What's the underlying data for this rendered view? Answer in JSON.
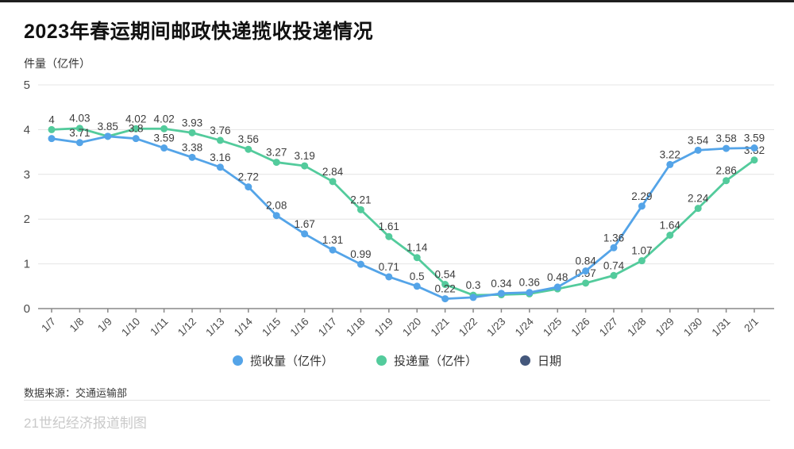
{
  "page": {
    "title": "2023年春运期间邮政快递揽收投递情况",
    "y_axis_title": "件量（亿件）",
    "source": "数据来源：交通运输部",
    "credit": "21世纪经济报道制图"
  },
  "colors": {
    "pickup": "#54a4e8",
    "delivery": "#53cb9c",
    "date_legend": "#44587c",
    "grid": "#e4e4e4",
    "axis": "#888888",
    "data_label": "#3d3d3d",
    "tick_label": "#4a4a4a"
  },
  "legend": [
    {
      "label": "揽收量（亿件）",
      "color_key": "pickup"
    },
    {
      "label": "投递量（亿件）",
      "color_key": "delivery"
    },
    {
      "label": "日期",
      "color_key": "date_legend"
    }
  ],
  "chart_data": {
    "type": "line",
    "title": "2023年春运期间邮政快递揽收投递情况",
    "ylabel": "件量（亿件）",
    "ylim": [
      0,
      5
    ],
    "yticks": [
      0,
      1,
      2,
      3,
      4,
      5
    ],
    "grid": true,
    "legend_position": "bottom",
    "categories": [
      "1/7",
      "1/8",
      "1/9",
      "1/10",
      "1/11",
      "1/12",
      "1/13",
      "1/14",
      "1/15",
      "1/16",
      "1/17",
      "1/18",
      "1/19",
      "1/20",
      "1/21",
      "1/22",
      "1/23",
      "1/24",
      "1/25",
      "1/26",
      "1/27",
      "1/28",
      "1/29",
      "1/30",
      "1/31",
      "2/1"
    ],
    "series": [
      {
        "name": "揽收量（亿件）",
        "color": "#54a4e8",
        "values": [
          3.8,
          3.71,
          3.85,
          3.8,
          3.59,
          3.38,
          3.16,
          2.72,
          2.08,
          1.67,
          1.31,
          0.99,
          0.71,
          0.5,
          0.22,
          0.25,
          0.34,
          0.36,
          0.48,
          0.84,
          1.36,
          2.29,
          3.22,
          3.54,
          3.58,
          3.59
        ],
        "labels": [
          "",
          "3.71",
          "3.85",
          "3.8",
          "3.59",
          "3.38",
          "3.16",
          "2.72",
          "2.08",
          "1.67",
          "1.31",
          "0.99",
          "0.71",
          "0.5",
          "0.22",
          "",
          "0.34",
          "0.36",
          "0.48",
          "0.84",
          "1.36",
          "2.29",
          "3.22",
          "3.54",
          "3.58",
          "3.59"
        ]
      },
      {
        "name": "投递量（亿件）",
        "color": "#53cb9c",
        "values": [
          4,
          4.03,
          3.85,
          4.02,
          4.02,
          3.93,
          3.76,
          3.56,
          3.27,
          3.19,
          2.84,
          2.21,
          1.61,
          1.14,
          0.54,
          0.3,
          0.31,
          0.33,
          0.44,
          0.57,
          0.74,
          1.07,
          1.64,
          2.24,
          2.86,
          3.32
        ],
        "labels": [
          "4",
          "4.03",
          "",
          "4.02",
          "4.02",
          "3.93",
          "3.76",
          "3.56",
          "3.27",
          "3.19",
          "2.84",
          "2.21",
          "1.61",
          "1.14",
          "0.54",
          "0.3",
          "",
          "",
          "",
          "0.57",
          "0.74",
          "1.07",
          "1.64",
          "2.24",
          "2.86",
          "3.32"
        ]
      }
    ]
  }
}
